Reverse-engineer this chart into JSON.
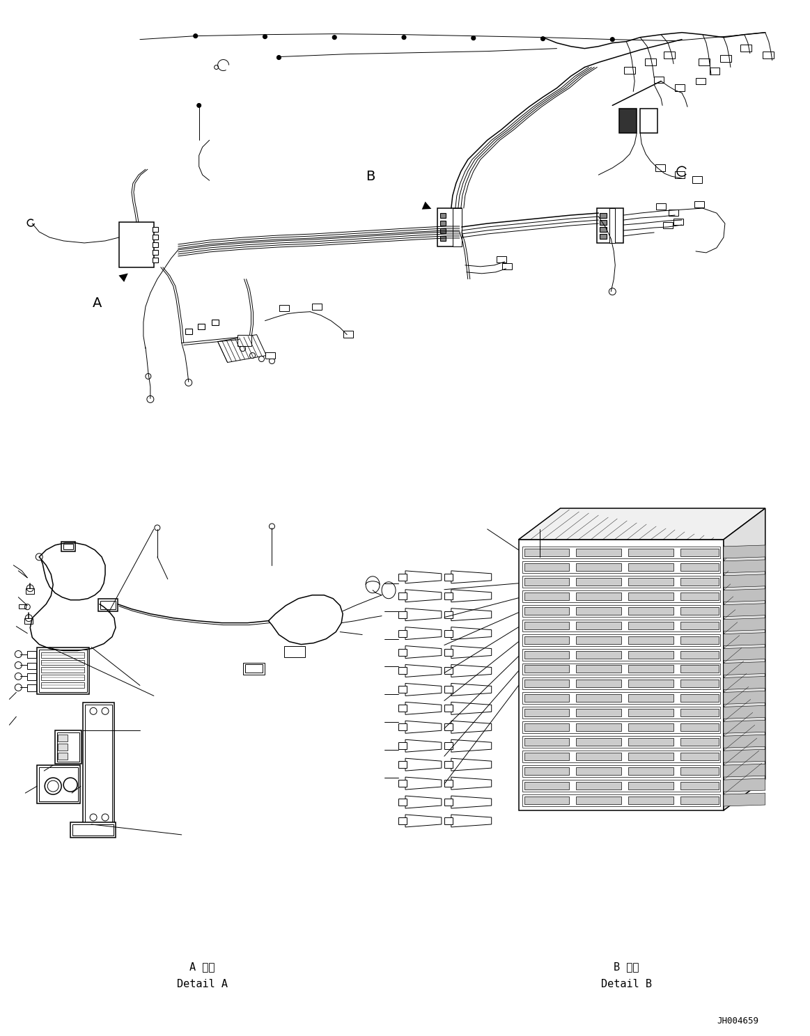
{
  "bg_color": "#ffffff",
  "line_color": "#000000",
  "figure_id": "JH004659",
  "label_A": "A",
  "label_B": "B",
  "detail_A_japanese": "A 詳細",
  "detail_A_english": "Detail A",
  "detail_B_japanese": "B 詳細",
  "detail_B_english": "Detail B",
  "figsize": [
    11.63,
    14.88
  ],
  "dpi": 100
}
